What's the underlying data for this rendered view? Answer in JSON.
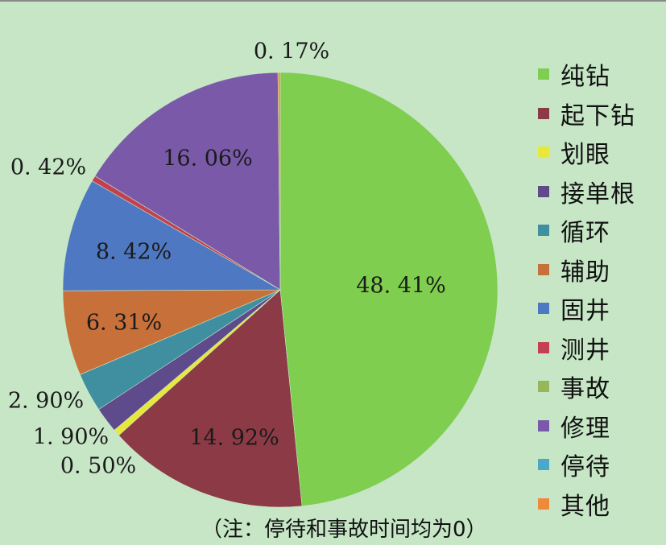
{
  "chart_data": {
    "type": "pie",
    "slices": [
      {
        "label": "纯钻",
        "value": 48.41,
        "value_label": "48. 41%",
        "color": "#7fce50"
      },
      {
        "label": "起下钻",
        "value": 14.92,
        "value_label": "14. 92%",
        "color": "#8b3a46"
      },
      {
        "label": "划眼",
        "value": 0.5,
        "value_label": "0. 50%",
        "color": "#e8e83a"
      },
      {
        "label": "接单根",
        "value": 1.9,
        "value_label": "1. 90%",
        "color": "#5f4a8c"
      },
      {
        "label": "循环",
        "value": 2.9,
        "value_label": "2. 90%",
        "color": "#3f8fa0"
      },
      {
        "label": "辅助",
        "value": 6.31,
        "value_label": "6. 31%",
        "color": "#c8703a"
      },
      {
        "label": "固井",
        "value": 8.42,
        "value_label": "8. 42%",
        "color": "#4f78c2"
      },
      {
        "label": "测井",
        "value": 0.42,
        "value_label": "0. 42%",
        "color": "#c44050"
      },
      {
        "label": "事故",
        "value": 0,
        "value_label": "",
        "color": "#95b85c"
      },
      {
        "label": "修理",
        "value": 16.06,
        "value_label": "16. 06%",
        "color": "#7a5aa8"
      },
      {
        "label": "停待",
        "value": 0,
        "value_label": "",
        "color": "#4ba9c7"
      },
      {
        "label": "其他",
        "value": 0.17,
        "value_label": "0. 17%",
        "color": "#ef8a3c"
      }
    ],
    "legend_position": "right"
  },
  "note": "（注：停待和事故时间均为0）"
}
